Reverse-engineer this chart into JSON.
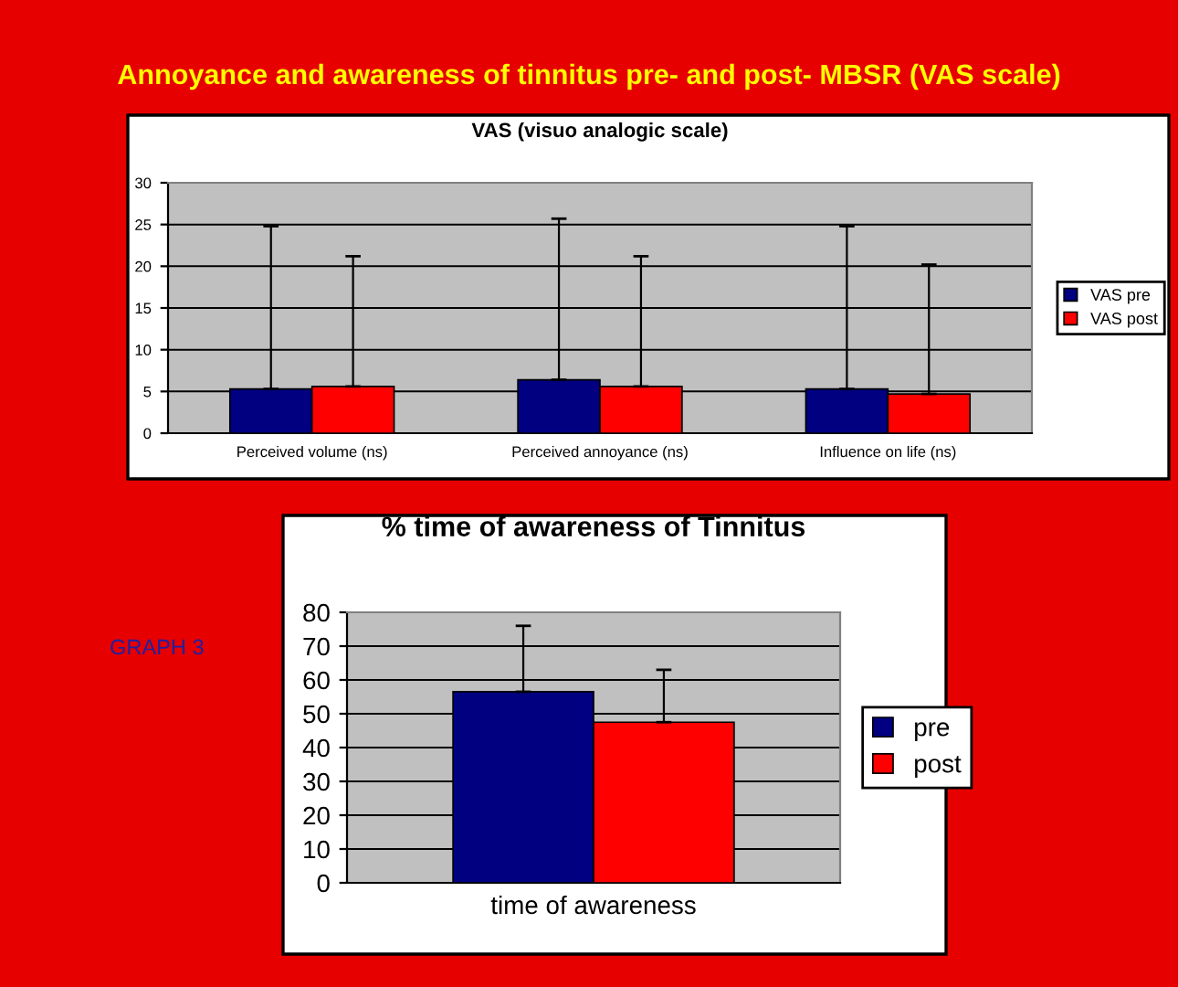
{
  "chart_data": [
    {
      "type": "bar",
      "title": "VAS (visuo analogic scale)",
      "annotations": [
        "Annoyance and awareness of tinnitus pre- and post- MBSR (VAS scale)"
      ],
      "categories": [
        "Perceived volume (ns)",
        "Perceived annoyance (ns)",
        "Influence on life (ns)"
      ],
      "series": [
        {
          "name": "VAS pre",
          "color": "#000080",
          "values": [
            5.3,
            6.4,
            5.3
          ],
          "errors": [
            [
              5.3,
              24.8
            ],
            [
              6.4,
              25.7
            ],
            [
              5.3,
              24.8
            ]
          ]
        },
        {
          "name": "VAS post",
          "color": "#ff0000",
          "values": [
            5.6,
            5.6,
            4.7
          ],
          "errors": [
            [
              5.6,
              21.2
            ],
            [
              5.6,
              21.2
            ],
            [
              4.7,
              20.2
            ]
          ]
        }
      ],
      "ylim": [
        0,
        30
      ],
      "yticks": [
        0,
        5,
        10,
        15,
        20,
        25,
        30
      ],
      "grid": "y",
      "legend": "right"
    },
    {
      "type": "bar",
      "title": "% time of awareness of Tinnitus",
      "annotations": [
        "GRAPH 3"
      ],
      "categories": [
        "time of awareness"
      ],
      "series": [
        {
          "name": "pre",
          "color": "#000080",
          "values": [
            56.5
          ],
          "errors": [
            [
              56.5,
              76
            ]
          ]
        },
        {
          "name": "post",
          "color": "#ff0000",
          "values": [
            47.5
          ],
          "errors": [
            [
              47.5,
              63
            ]
          ]
        }
      ],
      "ylim": [
        0,
        80
      ],
      "yticks": [
        0,
        10,
        20,
        30,
        40,
        50,
        60,
        70,
        80
      ],
      "grid": "y",
      "legend": "right"
    }
  ]
}
